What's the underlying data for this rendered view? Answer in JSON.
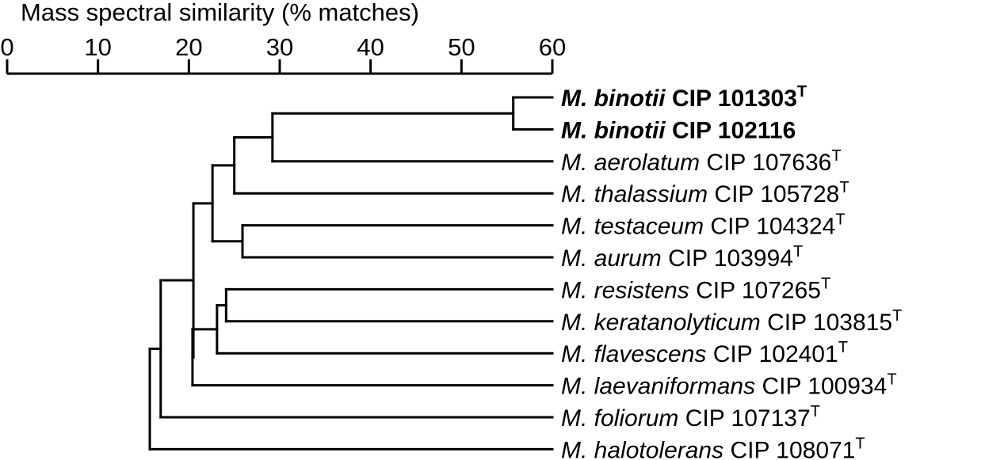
{
  "axis": {
    "title": "Mass spectral similarity (% matches)",
    "ticks": [
      "0",
      "10",
      "20",
      "30",
      "40",
      "50",
      "60"
    ],
    "range": [
      0,
      60
    ]
  },
  "leaves": [
    {
      "genus": "M.",
      "species": "binotii",
      "strain": "CIP 101303",
      "sup": "T",
      "bold": true
    },
    {
      "genus": "M.",
      "species": "binotii",
      "strain": "CIP 102116",
      "sup": "",
      "bold": true
    },
    {
      "genus": "M.",
      "species": "aerolatum",
      "strain": "CIP 107636",
      "sup": "T",
      "bold": false
    },
    {
      "genus": "M.",
      "species": "thalassium",
      "strain": "CIP 105728",
      "sup": "T",
      "bold": false
    },
    {
      "genus": "M.",
      "species": "testaceum",
      "strain": "CIP 104324",
      "sup": "T",
      "bold": false
    },
    {
      "genus": "M.",
      "species": "aurum",
      "strain": "CIP 103994",
      "sup": "T",
      "bold": false
    },
    {
      "genus": "M.",
      "species": "resistens",
      "strain": "CIP 107265",
      "sup": "T",
      "bold": false
    },
    {
      "genus": "M.",
      "species": "keratanolyticum",
      "strain": "CIP 103815",
      "sup": "T",
      "bold": false
    },
    {
      "genus": "M.",
      "species": "flavescens",
      "strain": "CIP 102401",
      "sup": "T",
      "bold": false
    },
    {
      "genus": "M.",
      "species": "laevaniformans",
      "strain": "CIP 100934",
      "sup": "T",
      "bold": false
    },
    {
      "genus": "M.",
      "species": "foliorum",
      "strain": "CIP 107137",
      "sup": "T",
      "bold": false
    },
    {
      "genus": "M.",
      "species": "halotolerans",
      "strain": "CIP 108071",
      "sup": "T",
      "bold": false
    }
  ],
  "nodes": [
    {
      "id": "n1",
      "similarity": 55.7,
      "children": [
        "L0",
        "L1"
      ]
    },
    {
      "id": "n2",
      "similarity": 29.2,
      "children": [
        "n1",
        "L2"
      ]
    },
    {
      "id": "n3",
      "similarity": 25.0,
      "children": [
        "n2",
        "L3"
      ]
    },
    {
      "id": "n4",
      "similarity": 25.9,
      "children": [
        "L4",
        "L5"
      ]
    },
    {
      "id": "n5",
      "similarity": 22.6,
      "children": [
        "n3",
        "n4"
      ]
    },
    {
      "id": "n6",
      "similarity": 24.1,
      "children": [
        "L6",
        "L7"
      ]
    },
    {
      "id": "n7",
      "similarity": 23.1,
      "children": [
        "n6",
        "L8"
      ]
    },
    {
      "id": "n8",
      "similarity": 20.4,
      "children": [
        "n7",
        "L9"
      ]
    },
    {
      "id": "n9",
      "similarity": 20.5,
      "children": [
        "n5",
        "n8"
      ]
    },
    {
      "id": "n10",
      "similarity": 16.9,
      "children": [
        "n9",
        "L10"
      ]
    },
    {
      "id": "n11",
      "similarity": 15.7,
      "children": [
        "n10",
        "L11"
      ]
    }
  ]
}
